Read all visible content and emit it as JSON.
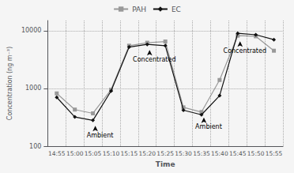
{
  "chart_data": {
    "type": "line",
    "xlabel": "Time",
    "ylabel": "Concentration (ng m⁻³)",
    "categories": [
      "14:55",
      "15:00",
      "15:05",
      "15:10",
      "15:15",
      "15:20",
      "15:25",
      "15:30",
      "15:35",
      "15:40",
      "15:45",
      "15:50",
      "15:55"
    ],
    "series": [
      {
        "name": "PAH",
        "color": "#999999",
        "marker": "square",
        "line_style": "solid",
        "values": [
          820,
          430,
          370,
          950,
          5500,
          6200,
          6500,
          470,
          390,
          1400,
          8200,
          8000,
          4500
        ]
      },
      {
        "name": "EC",
        "color": "#111111",
        "marker": "diamond",
        "line_style": "solid",
        "values": [
          700,
          320,
          280,
          900,
          5200,
          5800,
          5500,
          420,
          350,
          750,
          9000,
          8500,
          7000
        ]
      }
    ],
    "annotations": [
      {
        "text": "Ambient",
        "x": "15:05",
        "y": 280
      },
      {
        "text": "Concentrated",
        "x": "15:20",
        "y": 5800
      },
      {
        "text": "Ambient",
        "x": "15:35",
        "y": 390
      },
      {
        "text": "Concentrated",
        "x": "15:45",
        "y": 8200
      }
    ],
    "log": "y",
    "ylim": [
      100,
      15000
    ],
    "yticks": [
      100,
      1000,
      10000
    ],
    "grid": true,
    "legend": "top"
  }
}
